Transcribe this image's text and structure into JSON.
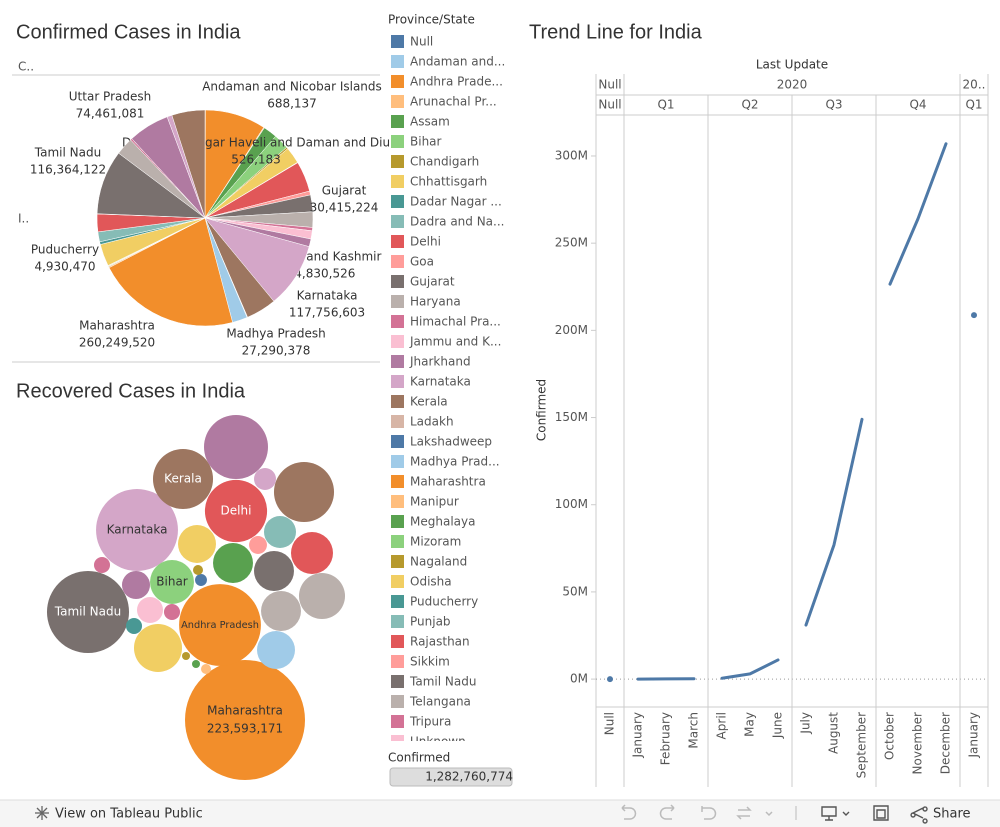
{
  "dashboard": {
    "legend": {
      "title": "Province/State",
      "items": [
        {
          "label": "Null",
          "color": "#4e79a7"
        },
        {
          "label": "Andaman and...",
          "color": "#a0cbe8"
        },
        {
          "label": "Andhra Prade...",
          "color": "#f28e2b"
        },
        {
          "label": "Arunachal Pr...",
          "color": "#ffbe7d"
        },
        {
          "label": "Assam",
          "color": "#59a14f"
        },
        {
          "label": "Bihar",
          "color": "#8cd17d"
        },
        {
          "label": "Chandigarh",
          "color": "#b6992d"
        },
        {
          "label": "Chhattisgarh",
          "color": "#f1ce63"
        },
        {
          "label": "Dadar Nagar ...",
          "color": "#499894"
        },
        {
          "label": "Dadra and Na...",
          "color": "#86bcb6"
        },
        {
          "label": "Delhi",
          "color": "#e15759"
        },
        {
          "label": "Goa",
          "color": "#ff9d9a"
        },
        {
          "label": "Gujarat",
          "color": "#79706e"
        },
        {
          "label": "Haryana",
          "color": "#bab0ac"
        },
        {
          "label": "Himachal Pra...",
          "color": "#d37295"
        },
        {
          "label": "Jammu and K...",
          "color": "#fabfd2"
        },
        {
          "label": "Jharkhand",
          "color": "#b07aa1"
        },
        {
          "label": "Karnataka",
          "color": "#d4a6c8"
        },
        {
          "label": "Kerala",
          "color": "#9d7660"
        },
        {
          "label": "Ladakh",
          "color": "#d7b5a6"
        },
        {
          "label": "Lakshadweep",
          "color": "#4e79a7"
        },
        {
          "label": "Madhya Prad...",
          "color": "#a0cbe8"
        },
        {
          "label": "Maharashtra",
          "color": "#f28e2b"
        },
        {
          "label": "Manipur",
          "color": "#ffbe7d"
        },
        {
          "label": "Meghalaya",
          "color": "#59a14f"
        },
        {
          "label": "Mizoram",
          "color": "#8cd17d"
        },
        {
          "label": "Nagaland",
          "color": "#b6992d"
        },
        {
          "label": "Odisha",
          "color": "#f1ce63"
        },
        {
          "label": "Puducherry",
          "color": "#499894"
        },
        {
          "label": "Punjab",
          "color": "#86bcb6"
        },
        {
          "label": "Rajasthan",
          "color": "#e15759"
        },
        {
          "label": "Sikkim",
          "color": "#ff9d9a"
        },
        {
          "label": "Tamil Nadu",
          "color": "#79706e"
        },
        {
          "label": "Telangana",
          "color": "#bab0ac"
        },
        {
          "label": "Tripura",
          "color": "#d37295"
        },
        {
          "label": "Unknown",
          "color": "#fabfd2"
        }
      ]
    },
    "filter": {
      "title": "Confirmed",
      "label": "1,282,760,774"
    },
    "toolbar": {
      "view": "View on Tableau Public",
      "share": "Share"
    }
  },
  "chart_data": [
    {
      "type": "pie",
      "title": "Confirmed Cases in India",
      "column_header": "C..",
      "row_header": "I..",
      "categories": [
        null,
        "Andaman and Nicobar Islands",
        null,
        null,
        null,
        null,
        null,
        null,
        null,
        "Dadra and Nagar Haveli and Daman and Diu",
        null,
        null,
        "Gujarat",
        null,
        null,
        "Jammu and Kashmir",
        null,
        "Karnataka",
        null,
        null,
        null,
        "Madhya Pradesh",
        "Maharashtra",
        null,
        null,
        null,
        null,
        null,
        "Puducherry",
        null,
        null,
        null,
        "Tamil Nadu",
        null,
        null,
        null,
        "Uttar Pradesh",
        null,
        null
      ],
      "values": [
        50000,
        688137,
        110000000,
        1500000,
        25000000,
        28000000,
        3000000,
        30000000,
        300000,
        526183,
        55000000,
        7000000,
        30415224,
        28000000,
        6000000,
        14830526,
        14000000,
        117756603,
        55000000,
        1000000,
        20000,
        27290378,
        260249520,
        2000000,
        1000000,
        300000,
        1000000,
        40000000,
        4930470,
        18000000,
        32000000,
        500000,
        116364122,
        32000000,
        3000000,
        100000,
        74461081,
        9000000,
        60000000
      ],
      "value_labels": [
        null,
        "688,137",
        null,
        null,
        null,
        null,
        null,
        null,
        null,
        "526,183",
        null,
        null,
        "30,415,224",
        null,
        null,
        "14,830,526",
        null,
        "117,756,603",
        null,
        null,
        null,
        "27,290,378",
        "260,249,520",
        null,
        null,
        null,
        null,
        null,
        "4,930,470",
        null,
        null,
        null,
        "116,364,122",
        null,
        null,
        null,
        "74,461,081",
        null,
        null
      ],
      "colors": [
        "#4e79a7",
        "#a0cbe8",
        "#f28e2b",
        "#ffbe7d",
        "#59a14f",
        "#8cd17d",
        "#b6992d",
        "#f1ce63",
        "#499894",
        "#86bcb6",
        "#e15759",
        "#ff9d9a",
        "#79706e",
        "#bab0ac",
        "#d37295",
        "#fabfd2",
        "#b07aa1",
        "#d4a6c8",
        "#9d7660",
        "#d7b5a6",
        "#4e79a7",
        "#a0cbe8",
        "#f28e2b",
        "#ffbe7d",
        "#59a14f",
        "#8cd17d",
        "#b6992d",
        "#f1ce63",
        "#499894",
        "#86bcb6",
        "#e15759",
        "#ff9d9a",
        "#79706e",
        "#bab0ac",
        "#d37295",
        "#fabfd2",
        "#b07aa1",
        "#d4a6c8",
        "#9d7660"
      ]
    },
    {
      "type": "bubble",
      "title": "Recovered Cases in India",
      "categories": [
        "Maharashtra",
        "Andhra Pradesh",
        "Tamil Nadu",
        "Karnataka",
        "Kerala",
        "Delhi",
        "Bihar",
        null,
        null,
        null,
        null,
        null,
        null,
        null,
        null,
        null,
        null,
        null,
        null,
        null,
        null,
        null,
        null,
        null,
        null,
        null,
        null,
        null,
        null,
        null
      ],
      "values": [
        223593171,
        104000000,
        104500000,
        104200000,
        56000000,
        60000000,
        30000000,
        63600000,
        56000000,
        27400000,
        32900000,
        24800000,
        24800000,
        15900000,
        24800000,
        22400000,
        35800000,
        22400000,
        12200000,
        10500000,
        4000000,
        4000000,
        4000000,
        7500000,
        5000000,
        2200000,
        1550000,
        1000000,
        1000000,
        1550000
      ],
      "value_labels": [
        "223,593,171",
        null,
        null,
        null,
        null,
        null,
        null,
        null,
        null,
        null,
        null,
        null,
        null,
        null,
        null,
        null,
        null,
        null,
        null,
        null,
        null,
        null,
        null,
        null,
        null,
        null,
        null,
        null,
        null,
        null
      ],
      "colors": [
        "#f28e2b",
        "#f28e2b",
        "#79706e",
        "#d4a6c8",
        "#9d7660",
        "#e15759",
        "#8cd17d",
        "#b07aa1",
        "#9d7660",
        "#e15759",
        "#bab0ac",
        "#bab0ac",
        "#79706e",
        "#86bcb6",
        "#59a14f",
        "#f1ce63",
        "#f1ce63",
        "#a0cbe8",
        "#b07aa1",
        "#fabfd2",
        "#d37295",
        "#499894",
        "#d37295",
        "#d4a6c8",
        "#ff9d9a",
        "#4e79a7",
        "#b6992d",
        "#b6992d",
        "#59a14f",
        "#ffbe7d"
      ]
    },
    {
      "type": "line",
      "title": "Trend Line for India",
      "x_label": "Last Update",
      "y_label": "Confirmed",
      "color": "#4e79a7",
      "ylim": [
        -16000000,
        323500000
      ],
      "yticks": [
        {
          "value": 0,
          "label": "0M"
        },
        {
          "value": 50000000,
          "label": "50M"
        },
        {
          "value": 100000000,
          "label": "100M"
        },
        {
          "value": 150000000,
          "label": "150M"
        },
        {
          "value": 200000000,
          "label": "200M"
        },
        {
          "value": 250000000,
          "label": "250M"
        },
        {
          "value": 300000000,
          "label": "300M"
        }
      ],
      "years": [
        {
          "label": "Null",
          "quarters": [
            {
              "label": "Null",
              "categories": [
                "Null"
              ],
              "values": [
                0
              ]
            }
          ]
        },
        {
          "label": "2020",
          "quarters": [
            {
              "label": "Q1",
              "categories": [
                "January",
                "February",
                "March"
              ],
              "values": [
                10000,
                100000,
                200000
              ]
            },
            {
              "label": "Q2",
              "categories": [
                "April",
                "May",
                "June"
              ],
              "values": [
                500000,
                3000000,
                11000000
              ]
            },
            {
              "label": "Q3",
              "categories": [
                "July",
                "August",
                "September"
              ],
              "values": [
                31000000,
                77000000,
                149000000
              ]
            },
            {
              "label": "Q4",
              "categories": [
                "October",
                "November",
                "December"
              ],
              "values": [
                226500000,
                264000000,
                307000000
              ]
            }
          ]
        },
        {
          "label": "20..",
          "quarters": [
            {
              "label": "Q1",
              "categories": [
                "January"
              ],
              "values": [
                208700000
              ]
            }
          ]
        }
      ]
    }
  ]
}
